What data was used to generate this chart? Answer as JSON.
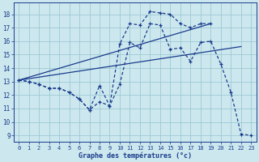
{
  "xlabel": "Graphe des températures (°c)",
  "bg_color": "#cce8ee",
  "line_color": "#1a3a8c",
  "grid_color": "#9dc8d4",
  "xlim": [
    -0.5,
    23.5
  ],
  "ylim": [
    8.5,
    18.85
  ],
  "xticks": [
    0,
    1,
    2,
    3,
    4,
    5,
    6,
    7,
    8,
    9,
    10,
    11,
    12,
    13,
    14,
    15,
    16,
    17,
    18,
    19,
    20,
    21,
    22,
    23
  ],
  "yticks": [
    9,
    10,
    11,
    12,
    13,
    14,
    15,
    16,
    17,
    18
  ],
  "curve1_x": [
    0,
    1,
    2,
    3,
    4,
    5,
    6,
    7,
    8,
    9,
    10,
    11,
    12,
    13,
    14,
    15,
    16,
    17,
    18,
    19,
    20,
    21,
    22,
    23
  ],
  "curve1_y": [
    13.1,
    13.0,
    12.8,
    12.5,
    12.5,
    12.2,
    11.7,
    10.9,
    11.5,
    11.2,
    12.8,
    15.9,
    15.5,
    17.3,
    17.2,
    15.4,
    15.5,
    14.5,
    15.9,
    16.0,
    14.3,
    12.2,
    9.1,
    9.0
  ],
  "curve2_x": [
    0,
    1,
    2,
    3,
    4,
    5,
    6,
    7,
    8,
    9,
    10,
    11,
    12,
    13,
    14,
    15,
    16,
    17,
    18,
    19
  ],
  "curve2_y": [
    13.1,
    13.0,
    12.8,
    12.5,
    12.5,
    12.2,
    11.7,
    10.9,
    12.7,
    11.2,
    15.8,
    17.3,
    17.2,
    18.2,
    18.1,
    18.0,
    17.3,
    17.0,
    17.3,
    17.3
  ],
  "trend1_x": [
    0,
    19
  ],
  "trend1_y": [
    13.1,
    17.3
  ],
  "trend2_x": [
    0,
    22
  ],
  "trend2_y": [
    13.1,
    15.6
  ]
}
